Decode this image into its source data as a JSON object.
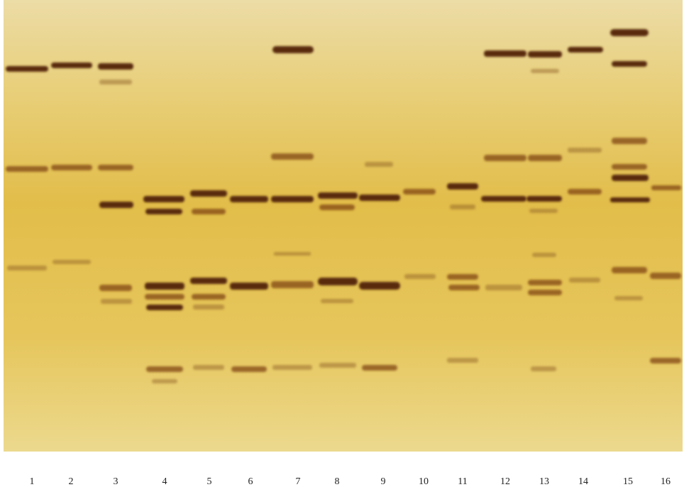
{
  "lanes": [
    "1",
    "2",
    "3",
    "4",
    "5",
    "6",
    "7",
    "8",
    "9",
    "10",
    "11",
    "12",
    "13",
    "14",
    "15",
    "16"
  ]
}
